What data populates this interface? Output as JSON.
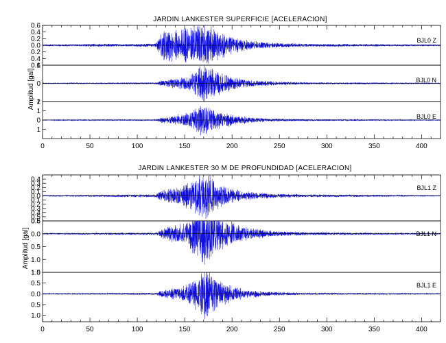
{
  "chart_data": [
    {
      "type": "line",
      "title": "JARDIN LANKESTER SUPERFICIE [ACELERACION]",
      "ylabel": "Amplitud [gal]",
      "xlabel": "",
      "xlim": [
        0,
        420
      ],
      "x_ticks": [
        0,
        50,
        100,
        150,
        200,
        250,
        300,
        350,
        400
      ],
      "grid": false,
      "series": [
        {
          "name": "BJL0   Z",
          "ylim": [
            -0.6,
            0.6
          ],
          "y_ticks": [
            -0.6,
            -0.4,
            -0.2,
            0.0,
            0.2,
            0.4,
            0.6
          ],
          "y_tick_labels": [
            "0.6",
            "0.4",
            "0.2",
            "0.0",
            "0.2",
            "0.4",
            "0.6"
          ],
          "peak_amplitude": 0.6,
          "onset_s": 122,
          "peak_time_s": 170,
          "envelope": [
            [
              0,
              0.02
            ],
            [
              70,
              0.04
            ],
            [
              85,
              0.03
            ],
            [
              120,
              0.05
            ],
            [
              125,
              0.38
            ],
            [
              140,
              0.42
            ],
            [
              160,
              0.45
            ],
            [
              172,
              0.6
            ],
            [
              190,
              0.33
            ],
            [
              210,
              0.16
            ],
            [
              240,
              0.07
            ],
            [
              280,
              0.04
            ],
            [
              420,
              0.02
            ]
          ]
        },
        {
          "name": "BJL0   N",
          "ylim": [
            -1.0,
            1.0
          ],
          "y_ticks": [
            -1,
            0,
            1
          ],
          "y_tick_labels": [
            "1",
            "0",
            "1"
          ],
          "peak_amplitude": 1.0,
          "onset_s": 122,
          "peak_time_s": 170,
          "envelope": [
            [
              0,
              0.02
            ],
            [
              120,
              0.04
            ],
            [
              125,
              0.14
            ],
            [
              155,
              0.38
            ],
            [
              170,
              1.0
            ],
            [
              190,
              0.45
            ],
            [
              210,
              0.22
            ],
            [
              240,
              0.1
            ],
            [
              280,
              0.05
            ],
            [
              420,
              0.02
            ]
          ]
        },
        {
          "name": "BJL0   E",
          "ylim": [
            -2.0,
            2.0
          ],
          "y_ticks": [
            -1,
            0,
            1,
            2
          ],
          "y_tick_labels": [
            "1",
            "0",
            "1",
            "2"
          ],
          "peak_amplitude": 1.5,
          "onset_s": 122,
          "peak_time_s": 170,
          "envelope": [
            [
              0,
              0.04
            ],
            [
              120,
              0.06
            ],
            [
              125,
              0.25
            ],
            [
              155,
              0.7
            ],
            [
              170,
              1.5
            ],
            [
              190,
              0.75
            ],
            [
              210,
              0.35
            ],
            [
              240,
              0.15
            ],
            [
              280,
              0.08
            ],
            [
              420,
              0.04
            ]
          ]
        }
      ]
    },
    {
      "type": "line",
      "title": "JARDIN LANKESTER 30 M DE PROFUNDIDAD [ACELERACION]",
      "ylabel": "Amplitud [gal]",
      "xlabel": "",
      "xlim": [
        0,
        420
      ],
      "x_ticks": [
        0,
        50,
        100,
        150,
        200,
        250,
        300,
        350,
        400
      ],
      "grid": false,
      "series": [
        {
          "name": "BJL1   Z",
          "ylim": [
            -0.6,
            0.5
          ],
          "y_ticks": [
            -0.6,
            -0.5,
            -0.4,
            -0.3,
            -0.2,
            -0.1,
            0.0,
            0.1,
            0.2,
            0.3,
            0.4
          ],
          "y_tick_labels": [
            "0.6",
            "0.5",
            "0.4",
            "0.3",
            "0.2",
            "0.1",
            "0.0",
            "0.1",
            "0.2",
            "0.3",
            "0.4"
          ],
          "peak_amplitude": 0.5,
          "onset_s": 122,
          "peak_time_s": 172,
          "envelope": [
            [
              0,
              0.01
            ],
            [
              120,
              0.03
            ],
            [
              125,
              0.12
            ],
            [
              150,
              0.22
            ],
            [
              172,
              0.5
            ],
            [
              190,
              0.22
            ],
            [
              210,
              0.1
            ],
            [
              240,
              0.05
            ],
            [
              280,
              0.03
            ],
            [
              420,
              0.01
            ]
          ]
        },
        {
          "name": "BJL1   N",
          "ylim": [
            -1.5,
            0.5
          ],
          "y_ticks": [
            -1.5,
            -1.0,
            -0.5,
            0.0,
            0.5
          ],
          "y_tick_labels": [
            "1.5",
            "1.0",
            "0.5",
            "0.0",
            "0.5"
          ],
          "peak_amplitude": 1.2,
          "onset_s": 122,
          "peak_time_s": 170,
          "envelope": [
            [
              0,
              0.02
            ],
            [
              120,
              0.04
            ],
            [
              125,
              0.15
            ],
            [
              155,
              0.45
            ],
            [
              170,
              1.2
            ],
            [
              190,
              0.5
            ],
            [
              210,
              0.25
            ],
            [
              240,
              0.1
            ],
            [
              280,
              0.05
            ],
            [
              420,
              0.02
            ]
          ]
        },
        {
          "name": "BJL1   E",
          "ylim": [
            -1.3,
            1.0
          ],
          "y_ticks": [
            -1.0,
            -0.5,
            0.0,
            0.5,
            1.0
          ],
          "y_tick_labels": [
            "1.0",
            "0.5",
            "0.0",
            "0.5",
            "1.0"
          ],
          "peak_amplitude": 1.0,
          "onset_s": 122,
          "peak_time_s": 172,
          "envelope": [
            [
              0,
              0.02
            ],
            [
              120,
              0.04
            ],
            [
              125,
              0.12
            ],
            [
              155,
              0.4
            ],
            [
              172,
              1.0
            ],
            [
              190,
              0.45
            ],
            [
              210,
              0.2
            ],
            [
              240,
              0.08
            ],
            [
              280,
              0.04
            ],
            [
              420,
              0.02
            ]
          ]
        }
      ]
    }
  ]
}
